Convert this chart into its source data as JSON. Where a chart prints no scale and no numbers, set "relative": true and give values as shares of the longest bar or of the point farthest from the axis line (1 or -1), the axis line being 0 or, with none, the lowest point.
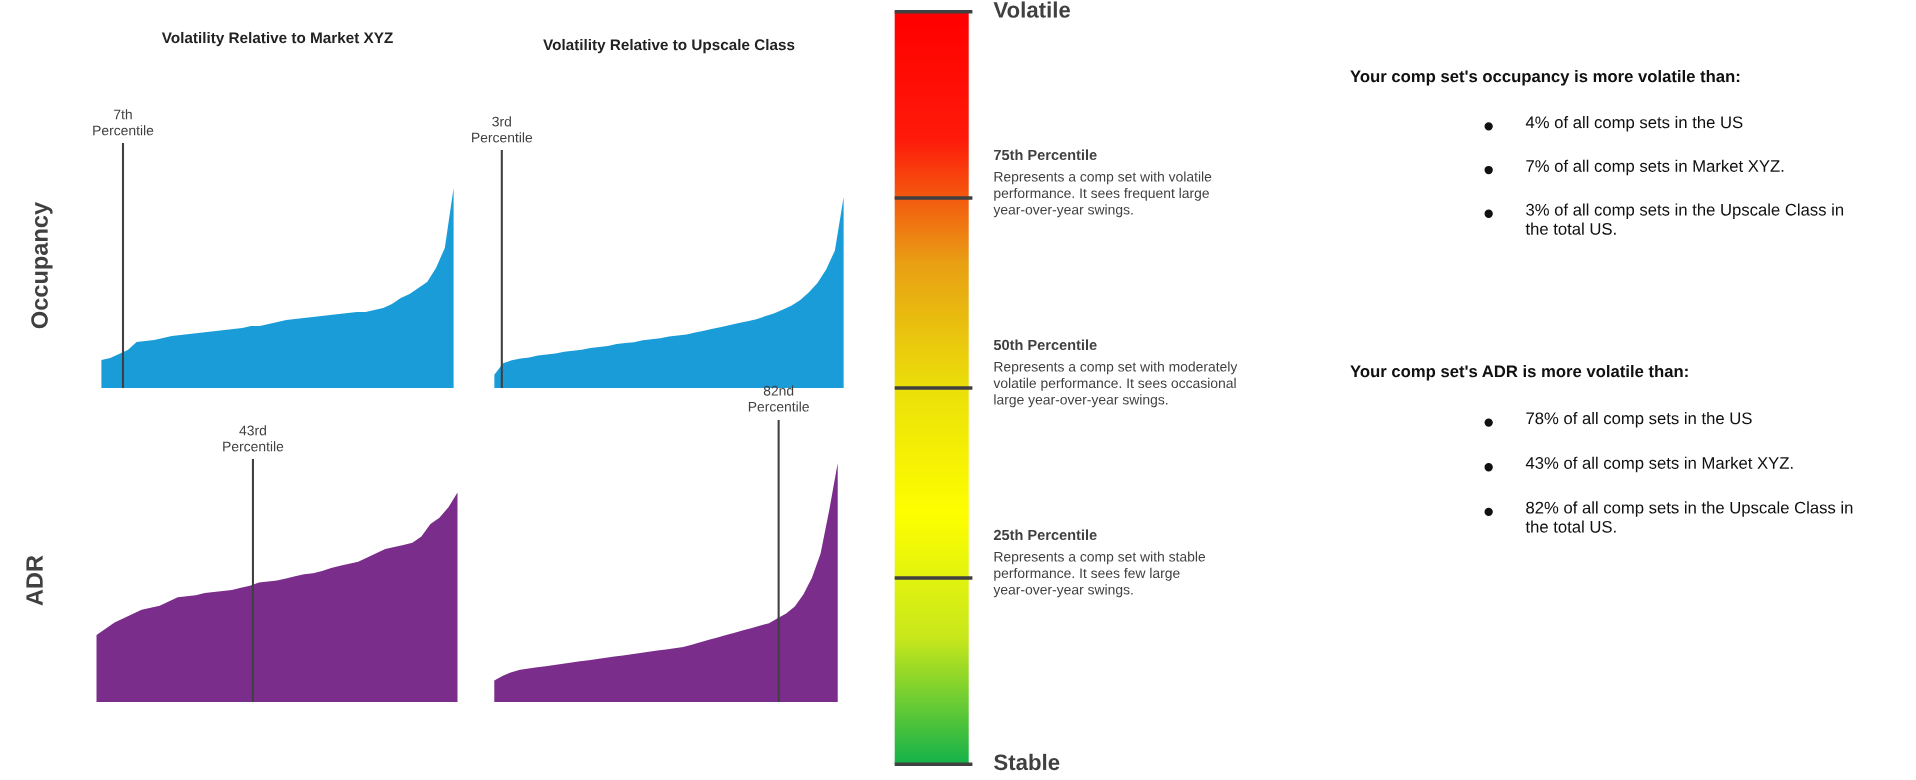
{
  "chart_data": [
    {
      "type": "area",
      "title": "Volatility Relative to Market XYZ",
      "ylabel": "Occupancy",
      "relative": true,
      "categories": [
        null,
        null,
        null,
        null,
        null,
        null,
        null,
        null,
        null,
        null,
        null,
        null,
        null,
        null,
        null,
        null,
        null,
        null,
        null,
        null,
        null,
        null,
        null,
        null,
        null,
        null,
        null,
        null,
        null,
        null,
        null,
        null,
        null,
        null,
        null,
        null,
        null,
        null,
        null,
        null,
        null
      ],
      "series": [
        {
          "color": "#1a9cd8",
          "values": [
            0.14,
            0.15,
            0.17,
            0.19,
            0.23,
            0.235,
            0.24,
            0.25,
            0.26,
            0.265,
            0.27,
            0.275,
            0.28,
            0.285,
            0.29,
            0.295,
            0.3,
            0.31,
            0.31,
            0.32,
            0.33,
            0.34,
            0.345,
            0.35,
            0.355,
            0.36,
            0.365,
            0.37,
            0.375,
            0.38,
            0.38,
            0.39,
            0.4,
            0.42,
            0.45,
            0.47,
            0.5,
            0.53,
            0.6,
            0.7,
            1.0
          ]
        }
      ],
      "annotations": [
        "7th\nPercentile"
      ]
    },
    {
      "type": "area",
      "title": "Volatility Relative to Upscale Class",
      "relative": true,
      "categories": [
        null,
        null,
        null,
        null,
        null,
        null,
        null,
        null,
        null,
        null,
        null,
        null,
        null,
        null,
        null,
        null,
        null,
        null,
        null,
        null,
        null,
        null,
        null,
        null,
        null,
        null,
        null,
        null,
        null,
        null,
        null,
        null,
        null,
        null,
        null,
        null,
        null,
        null,
        null,
        null,
        null
      ],
      "series": [
        {
          "color": "#1a9cd8",
          "values": [
            0.07,
            0.13,
            0.145,
            0.155,
            0.16,
            0.17,
            0.175,
            0.18,
            0.19,
            0.195,
            0.2,
            0.21,
            0.215,
            0.22,
            0.23,
            0.235,
            0.24,
            0.25,
            0.255,
            0.26,
            0.27,
            0.275,
            0.28,
            0.29,
            0.3,
            0.31,
            0.32,
            0.33,
            0.34,
            0.35,
            0.36,
            0.375,
            0.39,
            0.41,
            0.43,
            0.46,
            0.5,
            0.55,
            0.62,
            0.72,
            1.0
          ]
        }
      ],
      "annotations": [
        "3rd\nPercentile"
      ]
    },
    {
      "type": "area",
      "ylabel": "ADR",
      "relative": true,
      "categories": [
        null,
        null,
        null,
        null,
        null,
        null,
        null,
        null,
        null,
        null,
        null,
        null,
        null,
        null,
        null,
        null,
        null,
        null,
        null,
        null,
        null,
        null,
        null,
        null,
        null,
        null,
        null,
        null,
        null,
        null,
        null,
        null,
        null,
        null,
        null,
        null,
        null,
        null,
        null,
        null,
        null
      ],
      "series": [
        {
          "color": "#7b2d8b",
          "values": [
            0.32,
            0.35,
            0.38,
            0.4,
            0.42,
            0.44,
            0.45,
            0.46,
            0.48,
            0.5,
            0.505,
            0.51,
            0.52,
            0.525,
            0.53,
            0.535,
            0.545,
            0.555,
            0.57,
            0.575,
            0.58,
            0.59,
            0.6,
            0.61,
            0.615,
            0.625,
            0.64,
            0.65,
            0.66,
            0.67,
            0.69,
            0.71,
            0.73,
            0.74,
            0.75,
            0.76,
            0.79,
            0.85,
            0.88,
            0.93,
            1.0
          ]
        }
      ],
      "annotations": [
        "43rd\nPercentile"
      ]
    },
    {
      "type": "area",
      "relative": true,
      "categories": [
        null,
        null,
        null,
        null,
        null,
        null,
        null,
        null,
        null,
        null,
        null,
        null,
        null,
        null,
        null,
        null,
        null,
        null,
        null,
        null,
        null,
        null,
        null,
        null,
        null,
        null,
        null,
        null,
        null,
        null,
        null,
        null,
        null,
        null,
        null,
        null,
        null,
        null,
        null,
        null,
        null
      ],
      "series": [
        {
          "color": "#7b2d8b",
          "values": [
            0.09,
            0.11,
            0.125,
            0.135,
            0.14,
            0.145,
            0.15,
            0.155,
            0.16,
            0.165,
            0.17,
            0.175,
            0.18,
            0.185,
            0.19,
            0.195,
            0.2,
            0.205,
            0.21,
            0.215,
            0.22,
            0.225,
            0.23,
            0.24,
            0.25,
            0.26,
            0.27,
            0.28,
            0.29,
            0.3,
            0.31,
            0.32,
            0.33,
            0.35,
            0.37,
            0.4,
            0.45,
            0.52,
            0.62,
            0.8,
            1.0
          ]
        }
      ],
      "annotations": [
        "82nd\nPercentile"
      ]
    },
    {
      "type": "other",
      "annotations": [
        "Volatile",
        "75th Percentile",
        "Represents a comp set with volatile performance. It sees frequent large year-over-year swings.",
        "50th Percentile",
        "Represents a comp set with moderately volatile performance. It sees occasional large year-over-year swings.",
        "25th Percentile",
        "Represents a comp set with stable performance. It sees few large year-over-year swings.",
        "Stable"
      ]
    },
    {
      "type": "other",
      "title": "Your comp set's occupancy is more volatile than:",
      "annotations": [
        "4% of all comp sets in the US",
        "7% of all comp sets in Market XYZ.",
        "3% of all comp sets in the Upscale Class in\nthe total US."
      ]
    },
    {
      "type": "other",
      "title": "Your comp set's ADR is more volatile than:",
      "annotations": [
        "78% of all comp sets in the US",
        "43% of all comp sets in Market XYZ.",
        "82% of all comp sets in the Upscale Class in\nthe total US."
      ]
    }
  ]
}
